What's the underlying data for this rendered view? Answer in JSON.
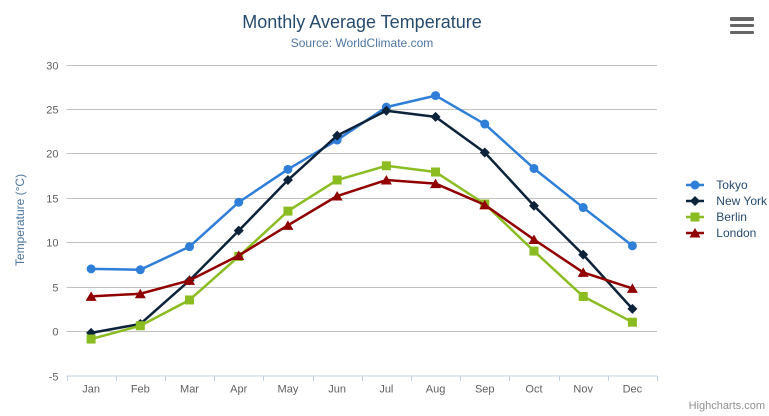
{
  "chart_data": {
    "type": "line",
    "title": "Monthly Average Temperature",
    "subtitle": "Source: WorldClimate.com",
    "xlabel": "",
    "ylabel": "Temperature (°C)",
    "categories": [
      "Jan",
      "Feb",
      "Mar",
      "Apr",
      "May",
      "Jun",
      "Jul",
      "Aug",
      "Sep",
      "Oct",
      "Nov",
      "Dec"
    ],
    "ylim": [
      -5,
      30
    ],
    "yticks": [
      -5,
      0,
      5,
      10,
      15,
      20,
      25,
      30
    ],
    "grid": true,
    "legend_position": "right",
    "series": [
      {
        "name": "Tokyo",
        "color": "#2f7ed8",
        "marker": "circle",
        "values": [
          7.0,
          6.9,
          9.5,
          14.5,
          18.2,
          21.5,
          25.2,
          26.5,
          23.3,
          18.3,
          13.9,
          9.6
        ]
      },
      {
        "name": "New York",
        "color": "#0d233a",
        "marker": "diamond",
        "values": [
          -0.2,
          0.8,
          5.7,
          11.3,
          17.0,
          22.0,
          24.8,
          24.1,
          20.1,
          14.1,
          8.6,
          2.5
        ]
      },
      {
        "name": "Berlin",
        "color": "#8bbc21",
        "marker": "square",
        "values": [
          -0.9,
          0.6,
          3.5,
          8.4,
          13.5,
          17.0,
          18.6,
          17.9,
          14.3,
          9.0,
          3.9,
          1.0
        ]
      },
      {
        "name": "London",
        "color": "#910000",
        "marker": "triangle",
        "values": [
          3.9,
          4.2,
          5.7,
          8.5,
          11.9,
          15.2,
          17.0,
          16.6,
          14.2,
          10.3,
          6.6,
          4.8
        ]
      }
    ]
  },
  "credits": {
    "label": "Highcharts.com"
  },
  "menu": {
    "icon": "hamburger-icon"
  },
  "colors": {
    "title": "#274b6d",
    "subtitle": "#4d759e",
    "axis_title": "#4d759e",
    "axis_labels": "#606060",
    "grid_line": "#c0c0c0",
    "axis_line": "#c0d0e0",
    "legend_text": "#274b6d",
    "credits": "#909090",
    "menu_icon": "#666666",
    "background": "#ffffff"
  }
}
